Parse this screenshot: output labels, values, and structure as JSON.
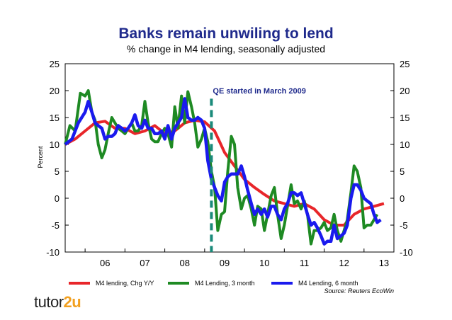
{
  "logo": {
    "text_a": "tutor",
    "text_b": "2u"
  },
  "chart_data": {
    "type": "line",
    "title": "Banks remain unwiling to lend",
    "subtitle": "% change in M4 lending, seasonally adjusted",
    "ylabel": "Percent",
    "xlabel": "",
    "ylim": [
      -10,
      25
    ],
    "yticks": [
      -10,
      -5,
      0,
      5,
      10,
      15,
      20,
      25
    ],
    "xlim": [
      2005.5,
      2013.75
    ],
    "xtick_labels": [
      "06",
      "07",
      "08",
      "09",
      "10",
      "11",
      "12",
      "13"
    ],
    "grid": false,
    "legend_position": "bottom",
    "annotation": {
      "text": "QE started in March 2009",
      "x": 2009.17
    },
    "source": "Source: Reuters EcoWin",
    "colors": {
      "red": "#e8262a",
      "green": "#1e8a23",
      "blue": "#1a1aee",
      "marker": "#1a8a7a",
      "title": "#1f2a8c"
    },
    "series": [
      {
        "name": "M4 lending, Chg Y/Y",
        "color": "#e8262a",
        "points": [
          [
            2005.5,
            10
          ],
          [
            2005.75,
            11
          ],
          [
            2006.0,
            12.5
          ],
          [
            2006.25,
            14
          ],
          [
            2006.5,
            14.3
          ],
          [
            2006.75,
            13
          ],
          [
            2007.0,
            13
          ],
          [
            2007.25,
            12
          ],
          [
            2007.5,
            12.5
          ],
          [
            2007.75,
            13.5
          ],
          [
            2008.0,
            12
          ],
          [
            2008.25,
            12.5
          ],
          [
            2008.5,
            14
          ],
          [
            2008.75,
            14.5
          ],
          [
            2009.0,
            14.2
          ],
          [
            2009.25,
            12.5
          ],
          [
            2009.5,
            8.5
          ],
          [
            2009.75,
            6
          ],
          [
            2010.0,
            3.5
          ],
          [
            2010.25,
            2
          ],
          [
            2010.5,
            0.7
          ],
          [
            2010.75,
            -0.5
          ],
          [
            2011.0,
            -1
          ],
          [
            2011.25,
            -1.5
          ],
          [
            2011.5,
            -1
          ],
          [
            2011.75,
            -2
          ],
          [
            2012.0,
            -4
          ],
          [
            2012.25,
            -5
          ],
          [
            2012.5,
            -5
          ],
          [
            2012.75,
            -3
          ],
          [
            2013.0,
            -2
          ],
          [
            2013.25,
            -1.5
          ],
          [
            2013.5,
            -1
          ]
        ]
      },
      {
        "name": "M4 Lending, 3 month",
        "color": "#1e8a23",
        "points": [
          [
            2005.5,
            10
          ],
          [
            2005.62,
            13.5
          ],
          [
            2005.75,
            12.5
          ],
          [
            2005.88,
            19.5
          ],
          [
            2006.0,
            19
          ],
          [
            2006.08,
            20
          ],
          [
            2006.17,
            16
          ],
          [
            2006.25,
            14.5
          ],
          [
            2006.33,
            10
          ],
          [
            2006.42,
            7.5
          ],
          [
            2006.5,
            9
          ],
          [
            2006.58,
            12
          ],
          [
            2006.67,
            15
          ],
          [
            2006.75,
            14
          ],
          [
            2006.83,
            13
          ],
          [
            2006.92,
            12.5
          ],
          [
            2007.0,
            12
          ],
          [
            2007.08,
            13
          ],
          [
            2007.17,
            14
          ],
          [
            2007.25,
            12.5
          ],
          [
            2007.33,
            12.5
          ],
          [
            2007.42,
            13.5
          ],
          [
            2007.5,
            18
          ],
          [
            2007.58,
            14
          ],
          [
            2007.67,
            11
          ],
          [
            2007.75,
            10.5
          ],
          [
            2007.83,
            10.5
          ],
          [
            2007.92,
            12
          ],
          [
            2008.0,
            13
          ],
          [
            2008.08,
            12
          ],
          [
            2008.17,
            9.5
          ],
          [
            2008.25,
            17
          ],
          [
            2008.33,
            13
          ],
          [
            2008.42,
            19
          ],
          [
            2008.5,
            14
          ],
          [
            2008.58,
            19.8
          ],
          [
            2008.67,
            17
          ],
          [
            2008.75,
            14
          ],
          [
            2008.83,
            9.5
          ],
          [
            2008.92,
            11
          ],
          [
            2009.0,
            13
          ],
          [
            2009.08,
            10.5
          ],
          [
            2009.17,
            5
          ],
          [
            2009.25,
            2
          ],
          [
            2009.33,
            -6
          ],
          [
            2009.42,
            -3
          ],
          [
            2009.5,
            -2.5
          ],
          [
            2009.58,
            5
          ],
          [
            2009.67,
            11.5
          ],
          [
            2009.75,
            10
          ],
          [
            2009.83,
            2
          ],
          [
            2009.92,
            -2
          ],
          [
            2010.0,
            0
          ],
          [
            2010.08,
            0.5
          ],
          [
            2010.17,
            -2
          ],
          [
            2010.25,
            -5
          ],
          [
            2010.33,
            -1.5
          ],
          [
            2010.42,
            -2
          ],
          [
            2010.5,
            -6
          ],
          [
            2010.58,
            -3
          ],
          [
            2010.67,
            0.5
          ],
          [
            2010.75,
            2
          ],
          [
            2010.83,
            -3
          ],
          [
            2010.92,
            -7.5
          ],
          [
            2011.0,
            -5
          ],
          [
            2011.08,
            -1.5
          ],
          [
            2011.17,
            2.5
          ],
          [
            2011.25,
            -1
          ],
          [
            2011.33,
            -0.5
          ],
          [
            2011.42,
            -2
          ],
          [
            2011.5,
            -0.5
          ],
          [
            2011.58,
            -3
          ],
          [
            2011.67,
            -8.5
          ],
          [
            2011.75,
            -6
          ],
          [
            2011.83,
            -6
          ],
          [
            2011.92,
            -5.5
          ],
          [
            2012.0,
            -4.5
          ],
          [
            2012.08,
            -6
          ],
          [
            2012.17,
            -5.5
          ],
          [
            2012.25,
            -3
          ],
          [
            2012.33,
            -6
          ],
          [
            2012.42,
            -8
          ],
          [
            2012.5,
            -6
          ],
          [
            2012.58,
            -4
          ],
          [
            2012.67,
            1
          ],
          [
            2012.75,
            6
          ],
          [
            2012.83,
            5
          ],
          [
            2012.92,
            2
          ],
          [
            2013.0,
            -5.5
          ],
          [
            2013.08,
            -5
          ],
          [
            2013.17,
            -5
          ],
          [
            2013.25,
            -4
          ],
          [
            2013.33,
            -3
          ]
        ]
      },
      {
        "name": "M4 Lending, 6 month",
        "color": "#1a1aee",
        "points": [
          [
            2005.5,
            10
          ],
          [
            2005.67,
            11
          ],
          [
            2005.83,
            14
          ],
          [
            2006.0,
            16
          ],
          [
            2006.08,
            18
          ],
          [
            2006.17,
            16
          ],
          [
            2006.25,
            14
          ],
          [
            2006.33,
            13.5
          ],
          [
            2006.42,
            13
          ],
          [
            2006.5,
            11
          ],
          [
            2006.58,
            11.5
          ],
          [
            2006.67,
            11.5
          ],
          [
            2006.75,
            12
          ],
          [
            2006.83,
            13.5
          ],
          [
            2006.92,
            13
          ],
          [
            2007.0,
            12.5
          ],
          [
            2007.08,
            13
          ],
          [
            2007.17,
            14
          ],
          [
            2007.25,
            15.5
          ],
          [
            2007.33,
            13.5
          ],
          [
            2007.42,
            13
          ],
          [
            2007.5,
            14.5
          ],
          [
            2007.58,
            13
          ],
          [
            2007.67,
            13
          ],
          [
            2007.75,
            12
          ],
          [
            2007.83,
            12
          ],
          [
            2007.92,
            12.5
          ],
          [
            2008.0,
            11
          ],
          [
            2008.08,
            13.5
          ],
          [
            2008.17,
            11
          ],
          [
            2008.25,
            13
          ],
          [
            2008.33,
            14
          ],
          [
            2008.42,
            15
          ],
          [
            2008.5,
            18.5
          ],
          [
            2008.58,
            15
          ],
          [
            2008.67,
            14.5
          ],
          [
            2008.75,
            14.5
          ],
          [
            2008.83,
            15
          ],
          [
            2008.92,
            14.5
          ],
          [
            2009.0,
            13
          ],
          [
            2009.08,
            7
          ],
          [
            2009.17,
            3.5
          ],
          [
            2009.25,
            2
          ],
          [
            2009.33,
            0.5
          ],
          [
            2009.42,
            -0.5
          ],
          [
            2009.5,
            3
          ],
          [
            2009.58,
            4
          ],
          [
            2009.67,
            4.5
          ],
          [
            2009.75,
            4.5
          ],
          [
            2009.83,
            4.5
          ],
          [
            2009.92,
            6
          ],
          [
            2010.0,
            4
          ],
          [
            2010.08,
            1.5
          ],
          [
            2010.17,
            -1
          ],
          [
            2010.25,
            -3
          ],
          [
            2010.33,
            -2
          ],
          [
            2010.42,
            -3
          ],
          [
            2010.5,
            -2
          ],
          [
            2010.58,
            -3.5
          ],
          [
            2010.67,
            -1.5
          ],
          [
            2010.75,
            -1.5
          ],
          [
            2010.83,
            -3
          ],
          [
            2010.92,
            -4
          ],
          [
            2011.0,
            -2
          ],
          [
            2011.08,
            -1
          ],
          [
            2011.17,
            1
          ],
          [
            2011.25,
            1
          ],
          [
            2011.33,
            0.5
          ],
          [
            2011.42,
            1
          ],
          [
            2011.5,
            -1
          ],
          [
            2011.58,
            -3
          ],
          [
            2011.67,
            -5
          ],
          [
            2011.75,
            -4.5
          ],
          [
            2011.83,
            -5.5
          ],
          [
            2011.92,
            -7
          ],
          [
            2012.0,
            -8.5
          ],
          [
            2012.08,
            -8
          ],
          [
            2012.17,
            -8
          ],
          [
            2012.25,
            -5
          ],
          [
            2012.33,
            -7.5
          ],
          [
            2012.42,
            -7
          ],
          [
            2012.5,
            -6.5
          ],
          [
            2012.58,
            -5
          ],
          [
            2012.67,
            0
          ],
          [
            2012.75,
            2.5
          ],
          [
            2012.83,
            2.5
          ],
          [
            2012.92,
            1.5
          ],
          [
            2013.0,
            0
          ],
          [
            2013.08,
            -0.5
          ],
          [
            2013.17,
            -1
          ],
          [
            2013.25,
            -3
          ],
          [
            2013.33,
            -4.5
          ],
          [
            2013.42,
            -4
          ]
        ]
      }
    ]
  }
}
